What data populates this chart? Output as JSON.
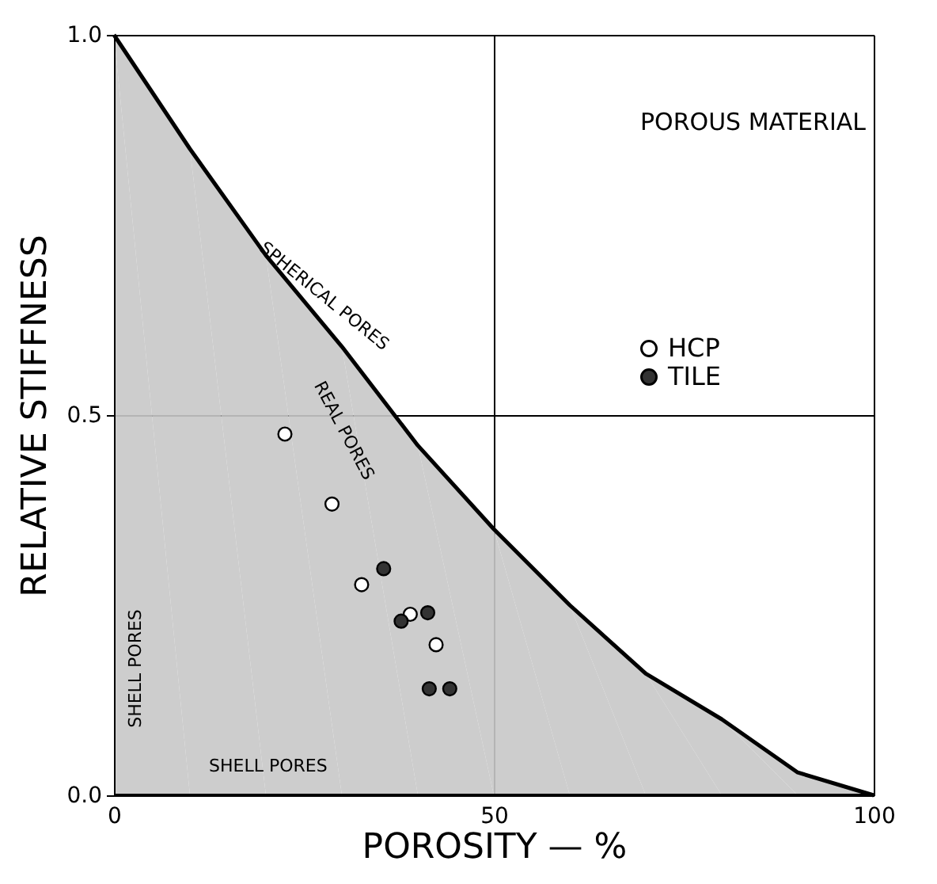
{
  "chart_data": {
    "type": "scatter",
    "xlabel": "POROSITY  —  %",
    "ylabel": "RELATIVE  STIFFNESS",
    "xlim": [
      0,
      100
    ],
    "ylim": [
      0,
      1
    ],
    "xticks": [
      0,
      50,
      100
    ],
    "yticks": [
      {
        "value": 0,
        "label": "0.0"
      },
      {
        "value": 0.5,
        "label": "0.5"
      },
      {
        "value": 1,
        "label": "1.0"
      }
    ],
    "grid": true,
    "legend": "right",
    "marker": "circle",
    "series": [
      {
        "type": "area",
        "color": "#c8c8c8",
        "marker": "none",
        "x": [
          0,
          10,
          20,
          30,
          40,
          50,
          60,
          70,
          80,
          90,
          100
        ],
        "values": [
          1,
          0.85,
          0.71,
          0.59,
          0.46,
          0.35,
          0.25,
          0.16,
          0.1,
          0.03,
          0
        ]
      },
      {
        "name": "HCP",
        "color": "#ffffff",
        "x": [
          22.5,
          28.7,
          32.6,
          39.0,
          42.4
        ],
        "values": [
          0.475,
          0.383,
          0.277,
          0.238,
          0.198
        ]
      },
      {
        "name": "TILE",
        "color": "#333333",
        "x": [
          35.5,
          37.8,
          41.3,
          41.5,
          44.2
        ],
        "values": [
          0.298,
          0.229,
          0.24,
          0.14,
          0.14
        ]
      }
    ],
    "annotations": [
      "POROUS MATERIAL",
      {
        "text": "SPHERICAL PORES",
        "x": 25,
        "y": 0.65
      },
      "REAL PORES",
      "SHELL PORES",
      "SHELL PORES"
    ]
  }
}
